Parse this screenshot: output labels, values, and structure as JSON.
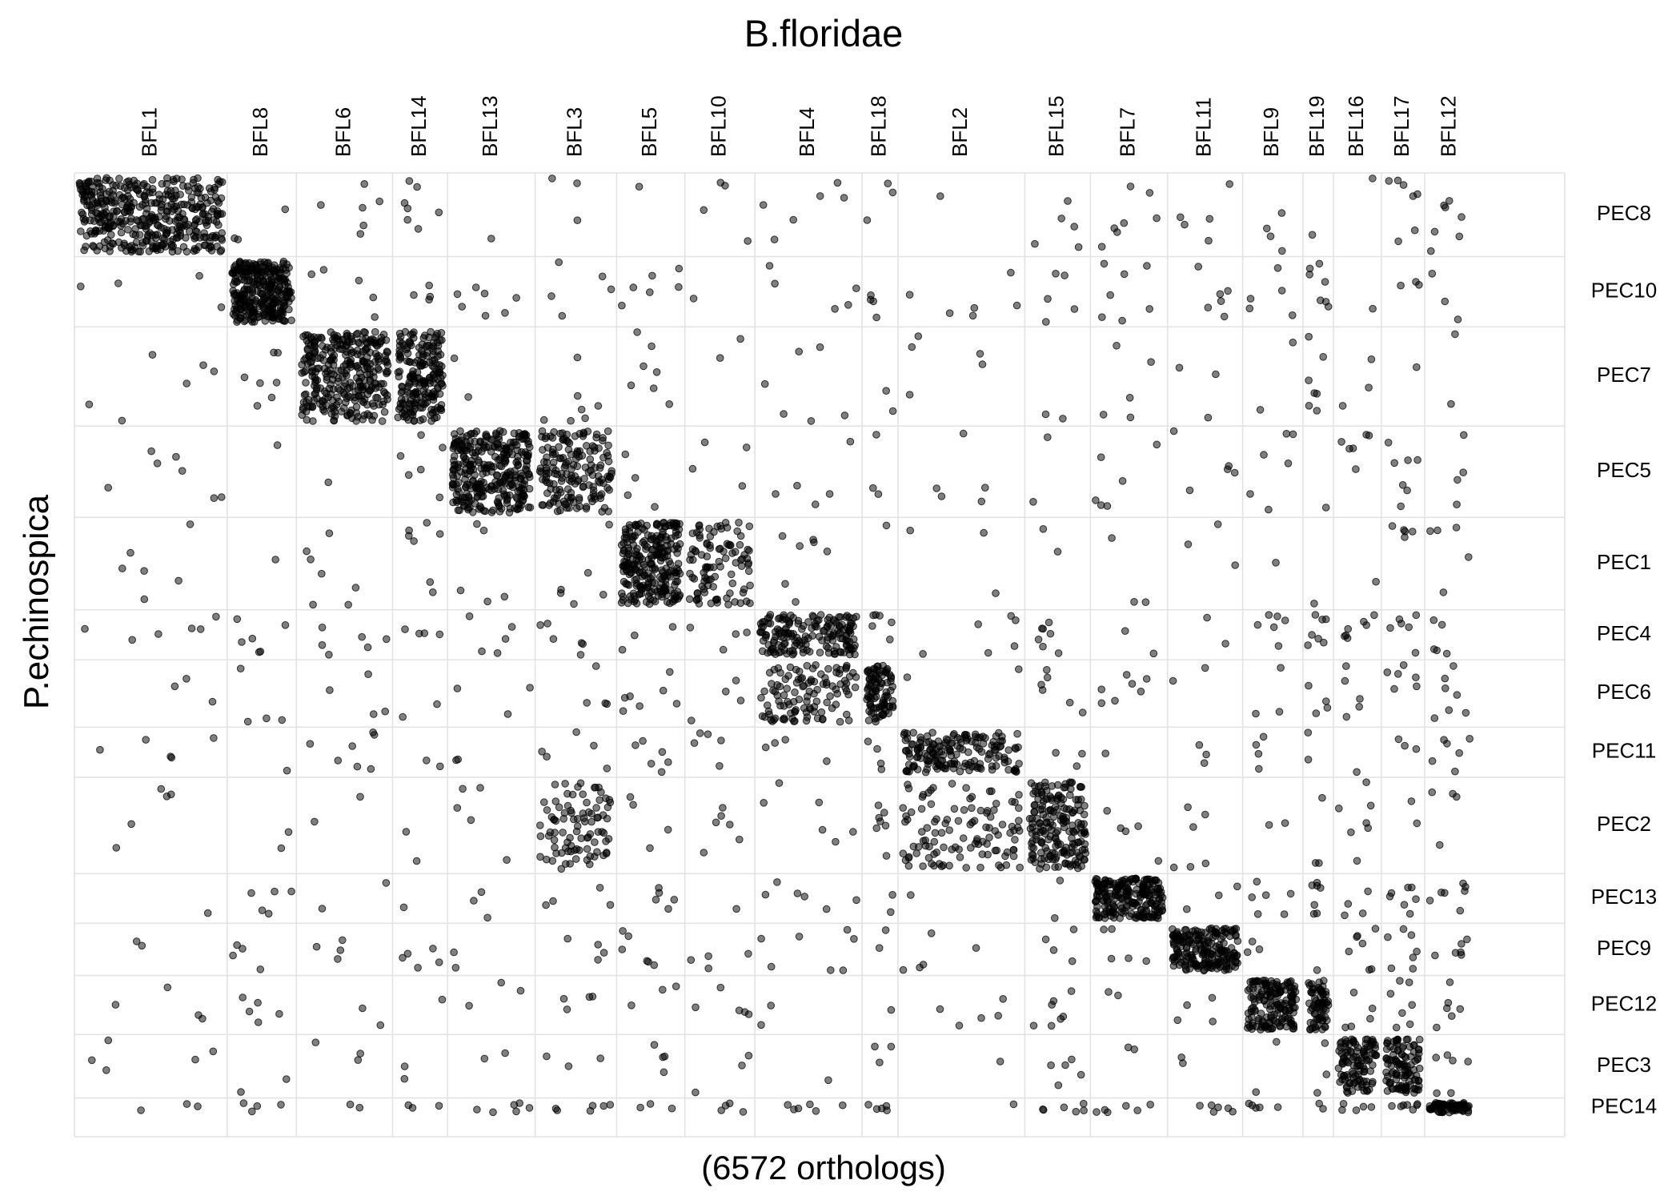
{
  "chart_data": {
    "type": "scatter",
    "title": "B.floridae",
    "xlabel": "(6572 orthologs)",
    "ylabel": "P.echinospica",
    "grid": true,
    "legend": "none",
    "point_color": "#000000",
    "point_opacity": 0.5,
    "columns": [
      {
        "label": "BFL1",
        "width": 0.1025
      },
      {
        "label": "BFL8",
        "width": 0.0464
      },
      {
        "label": "BFL6",
        "width": 0.0646
      },
      {
        "label": "BFL14",
        "width": 0.0369
      },
      {
        "label": "BFL13",
        "width": 0.0587
      },
      {
        "label": "BFL3",
        "width": 0.0547
      },
      {
        "label": "BFL5",
        "width": 0.0458
      },
      {
        "label": "BFL10",
        "width": 0.047
      },
      {
        "label": "BFL4",
        "width": 0.0719
      },
      {
        "label": "BFL18",
        "width": 0.0241
      },
      {
        "label": "BFL2",
        "width": 0.0851
      },
      {
        "label": "BFL15",
        "width": 0.044
      },
      {
        "label": "BFL7",
        "width": 0.0518
      },
      {
        "label": "BFL11",
        "width": 0.0504
      },
      {
        "label": "BFL9",
        "width": 0.0404
      },
      {
        "label": "BFL19",
        "width": 0.0205
      },
      {
        "label": "BFL16",
        "width": 0.0322
      },
      {
        "label": "BFL17",
        "width": 0.029
      },
      {
        "label": "BFL12",
        "width": 0.034
      }
    ],
    "rows": [
      {
        "label": "PEC8",
        "height": 0.0868
      },
      {
        "label": "PEC10",
        "height": 0.0729
      },
      {
        "label": "PEC7",
        "height": 0.1029
      },
      {
        "label": "PEC5",
        "height": 0.0948
      },
      {
        "label": "PEC1",
        "height": 0.0958
      },
      {
        "label": "PEC4",
        "height": 0.052
      },
      {
        "label": "PEC6",
        "height": 0.0698
      },
      {
        "label": "PEC11",
        "height": 0.052
      },
      {
        "label": "PEC2",
        "height": 0.1
      },
      {
        "label": "PEC13",
        "height": 0.0515
      },
      {
        "label": "PEC9",
        "height": 0.0542
      },
      {
        "label": "PEC12",
        "height": 0.0612
      },
      {
        "label": "PEC3",
        "height": 0.0659
      },
      {
        "label": "PEC14",
        "height": 0.0202
      }
    ],
    "dense_blocks": [
      {
        "row": "PEC8",
        "column": "BFL1",
        "count": 420
      },
      {
        "row": "PEC10",
        "column": "BFL8",
        "count": 300
      },
      {
        "row": "PEC7",
        "column": "BFL6",
        "count": 320
      },
      {
        "row": "PEC7",
        "column": "BFL14",
        "count": 200
      },
      {
        "row": "PEC5",
        "column": "BFL13",
        "count": 320
      },
      {
        "row": "PEC5",
        "column": "BFL3",
        "count": 170
      },
      {
        "row": "PEC1",
        "column": "BFL5",
        "count": 260
      },
      {
        "row": "PEC1",
        "column": "BFL10",
        "count": 100
      },
      {
        "row": "PEC4",
        "column": "BFL4",
        "count": 170
      },
      {
        "row": "PEC6",
        "column": "BFL4",
        "count": 110
      },
      {
        "row": "PEC6",
        "column": "BFL18",
        "count": 90
      },
      {
        "row": "PEC11",
        "column": "BFL2",
        "count": 170
      },
      {
        "row": "PEC2",
        "column": "BFL2",
        "count": 110
      },
      {
        "row": "PEC2",
        "column": "BFL3",
        "count": 90
      },
      {
        "row": "PEC2",
        "column": "BFL15",
        "count": 190
      },
      {
        "row": "PEC13",
        "column": "BFL7",
        "count": 220
      },
      {
        "row": "PEC9",
        "column": "BFL11",
        "count": 200
      },
      {
        "row": "PEC12",
        "column": "BFL9",
        "count": 160
      },
      {
        "row": "PEC12",
        "column": "BFL19",
        "count": 70
      },
      {
        "row": "PEC3",
        "column": "BFL16",
        "count": 110
      },
      {
        "row": "PEC3",
        "column": "BFL17",
        "count": 110
      },
      {
        "row": "PEC14",
        "column": "BFL12",
        "count": 70
      }
    ],
    "background_points_per_cell": [
      1,
      7
    ]
  }
}
